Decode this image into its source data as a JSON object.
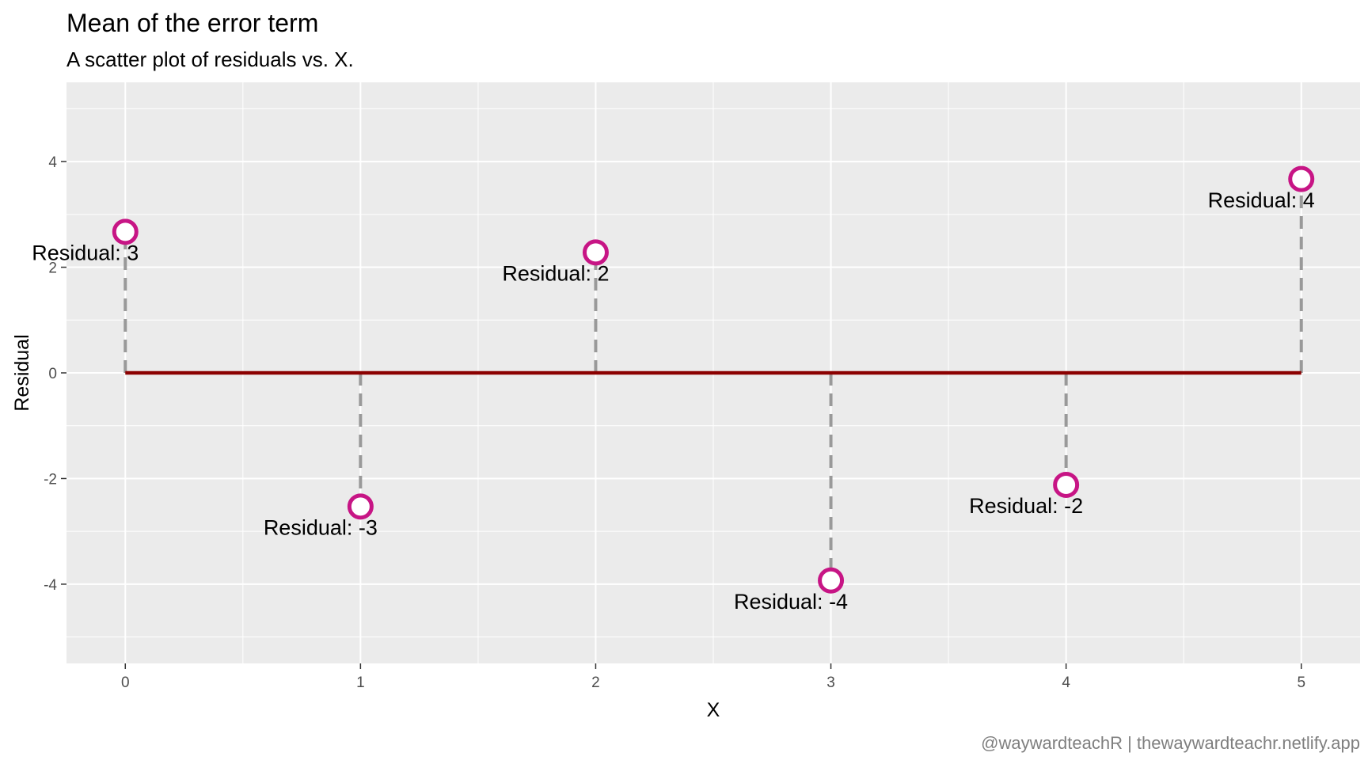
{
  "chart_data": {
    "type": "scatter",
    "title": "Mean of the error term",
    "subtitle": "A scatter plot of residuals vs. X.",
    "xlabel": "X",
    "ylabel": "Residual",
    "caption": "@waywardteachR | thewaywardteachr.netlify.app",
    "xlim": [
      -0.25,
      5.25
    ],
    "ylim": [
      -5.5,
      5.5
    ],
    "x_ticks": [
      0,
      1,
      2,
      3,
      4,
      5
    ],
    "y_ticks": [
      -4,
      -2,
      0,
      2,
      4
    ],
    "grid": true,
    "reference_line": {
      "y": 0,
      "x_from": 0,
      "x_to": 5,
      "color": "#8b0000"
    },
    "points": [
      {
        "x": 0,
        "y": 2.67,
        "label": "Residual: 3"
      },
      {
        "x": 1,
        "y": -2.53,
        "label": "Residual: -3"
      },
      {
        "x": 2,
        "y": 2.28,
        "label": "Residual: 2"
      },
      {
        "x": 3,
        "y": -3.93,
        "label": "Residual: -4"
      },
      {
        "x": 4,
        "y": -2.12,
        "label": "Residual: -2"
      },
      {
        "x": 5,
        "y": 3.67,
        "label": "Residual: 4"
      }
    ],
    "colors": {
      "panel": "#ebebeb",
      "grid": "#ffffff",
      "point": "#c71585",
      "segment": "#999999",
      "reference": "#8b0000"
    }
  }
}
